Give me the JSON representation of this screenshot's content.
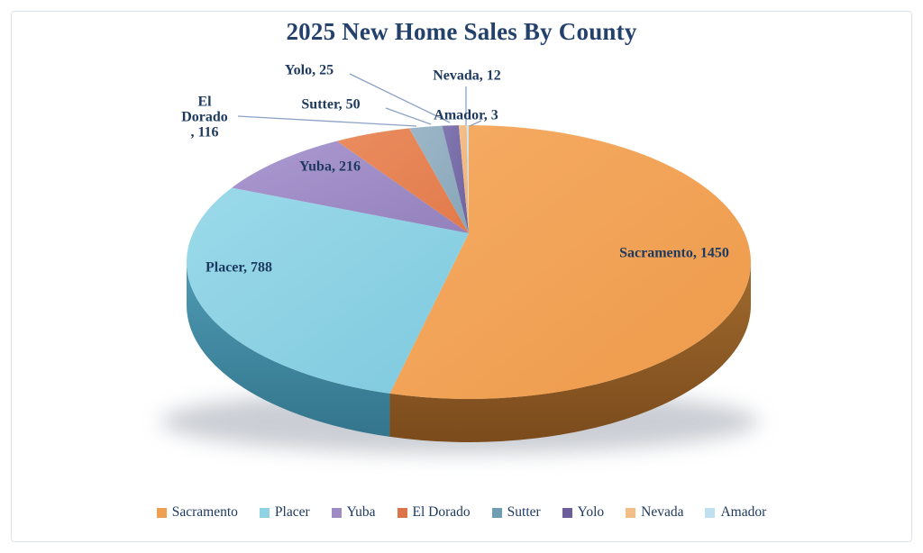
{
  "title": "2025 New Home Sales By County",
  "chart_data": {
    "type": "pie",
    "style": "3d",
    "title": "2025 New Home Sales By County",
    "start_angle_deg": 0,
    "direction": "clockwise",
    "legend_position": "bottom",
    "label_format": "name, value",
    "slices": [
      {
        "name": "Sacramento",
        "value": 1450,
        "label": "Sacramento, 1450",
        "color": "#F5AC64",
        "color2": "#EE9A4A",
        "side": "#A06A2E",
        "side2": "#7B4B1C",
        "legend_color": "#EF9F52"
      },
      {
        "name": "Placer",
        "value": 788,
        "label": "Placer, 788",
        "color": "#9BDAEA",
        "color2": "#7FC9DE",
        "side": "#4E9AB3",
        "side2": "#33758C",
        "legend_color": "#8FD2E4"
      },
      {
        "name": "Yuba",
        "value": 216,
        "label": "Yuba, 216",
        "color": "#AC99D1",
        "color2": "#9381BC",
        "legend_color": "#9E8BC4"
      },
      {
        "name": "El Dorado",
        "value": 116,
        "label": "El Dorado, 116",
        "label_lines": [
          "El",
          "Dorado",
          ", 116"
        ],
        "color": "#EA8D5F",
        "color2": "#E27A4B",
        "legend_color": "#DD7349"
      },
      {
        "name": "Sutter",
        "value": 50,
        "label": "Sutter, 50",
        "color": "#9DB7C8",
        "color2": "#87A6B8",
        "legend_color": "#6F9DB3"
      },
      {
        "name": "Yolo",
        "value": 25,
        "label": "Yolo, 25",
        "color": "#8278B1",
        "color2": "#6F639E",
        "legend_color": "#6B5E9B"
      },
      {
        "name": "Nevada",
        "value": 12,
        "label": "Nevada, 12",
        "color": "#F5C08C",
        "color2": "#EFB279",
        "legend_color": "#F2BE85"
      },
      {
        "name": "Amador",
        "value": 3,
        "label": "Amador, 3",
        "color": "#CDE6F2",
        "color2": "#C5E1EF",
        "legend_color": "#BFE0F0"
      }
    ],
    "colors": {
      "title_text": "#24416B",
      "label_text": "#1E3A60",
      "leader_line": "#8CA2C6",
      "frame_border": "#DCE3EA"
    }
  }
}
